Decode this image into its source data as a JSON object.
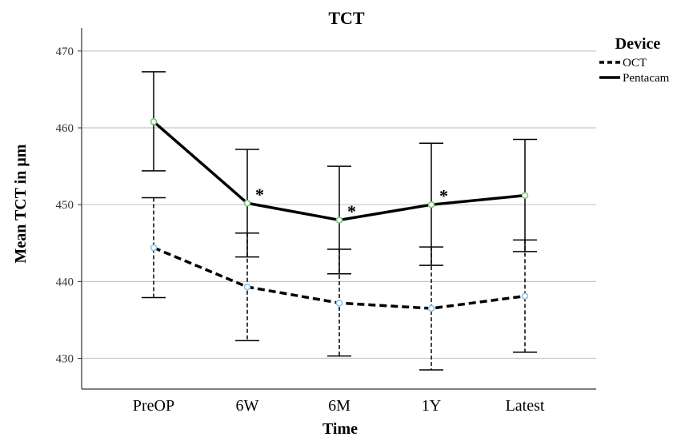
{
  "chart_data": {
    "type": "line",
    "title": "TCT",
    "xlabel": "Time",
    "ylabel": "Mean TCT in µm",
    "categories": [
      "PreOP",
      "6W",
      "6M",
      "1Y",
      "Latest"
    ],
    "ylim": [
      426,
      473
    ],
    "yticks": [
      430,
      440,
      450,
      460,
      470
    ],
    "grid": true,
    "legend": {
      "title": "Device",
      "placement": "top-right"
    },
    "series": [
      {
        "name": "OCT",
        "line_style": "dashed",
        "marker_color": "#8fc3e8",
        "values": [
          444.4,
          439.3,
          437.2,
          436.5,
          438.1
        ],
        "error_low": [
          437.9,
          432.3,
          430.3,
          428.5,
          430.8
        ],
        "error_high": [
          450.9,
          446.3,
          444.2,
          444.5,
          445.4
        ]
      },
      {
        "name": "Pentacam",
        "line_style": "solid",
        "marker_color": "#7cc47c",
        "values": [
          460.8,
          450.2,
          448.0,
          450.0,
          451.2
        ],
        "error_low": [
          454.4,
          443.2,
          441.0,
          442.1,
          443.9
        ],
        "error_high": [
          467.3,
          457.2,
          455.0,
          458.0,
          458.5
        ]
      }
    ],
    "annotations": [
      {
        "text": "*",
        "category": "6W",
        "y": 451.6
      },
      {
        "text": "*",
        "category": "6M",
        "y": 449.4
      },
      {
        "text": "*",
        "category": "1Y",
        "y": 451.4
      }
    ]
  },
  "colors": {
    "line": "#000000",
    "grid": "#c8c8c8",
    "axis": "#333333",
    "oct_marker": "#8fc3e8",
    "pentacam_marker": "#7cc47c"
  }
}
